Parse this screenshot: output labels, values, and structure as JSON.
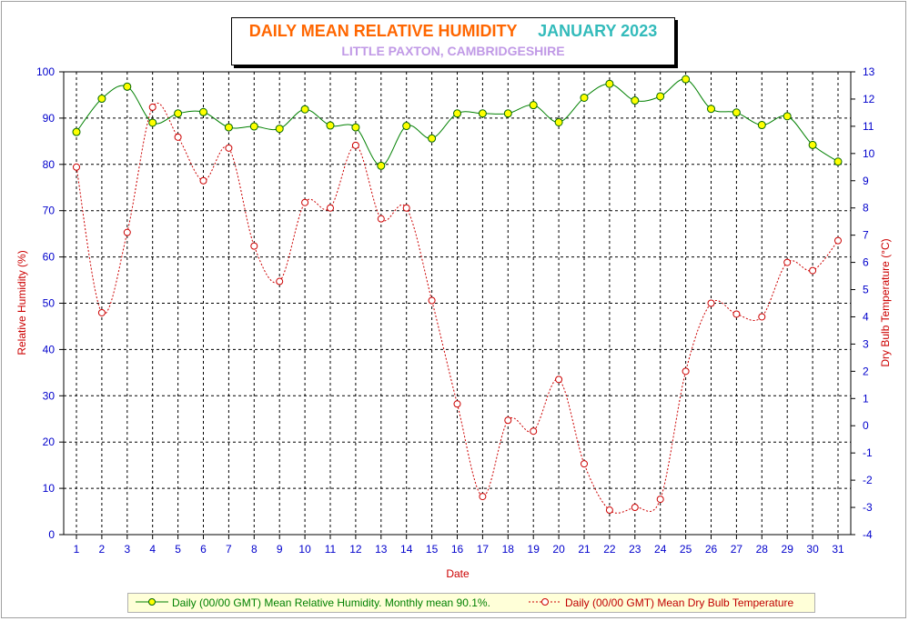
{
  "title": {
    "main": "DAILY MEAN RELATIVE HUMIDITY",
    "month": "JANUARY 2023",
    "subtitle": "LITTLE PAXTON, CAMBRIDGESHIRE"
  },
  "colors": {
    "humidity_line": "#008000",
    "humidity_marker": "#ffff00",
    "temp_line": "#cc0000",
    "axis_text": "#0000cc",
    "left_label": "#cc0000",
    "right_label": "#cc0000"
  },
  "chart_data": {
    "type": "line",
    "xlabel": "Date",
    "ylabel_left": "Relative Humidity (%)",
    "ylabel_right": "Dry Bulb Temperature (°C)",
    "x": [
      1,
      2,
      3,
      4,
      5,
      6,
      7,
      8,
      9,
      10,
      11,
      12,
      13,
      14,
      15,
      16,
      17,
      18,
      19,
      20,
      21,
      22,
      23,
      24,
      25,
      26,
      27,
      28,
      29,
      30,
      31
    ],
    "x_ticks": [
      "1",
      "2",
      "3",
      "4",
      "5",
      "6",
      "7",
      "8",
      "9",
      "10",
      "11",
      "12",
      "13",
      "14",
      "15",
      "16",
      "17",
      "18",
      "19",
      "20",
      "21",
      "22",
      "23",
      "24",
      "25",
      "26",
      "27",
      "28",
      "29",
      "30",
      "31"
    ],
    "ylim_left": [
      0,
      100
    ],
    "y_ticks_left": [
      "0",
      "10",
      "20",
      "30",
      "40",
      "50",
      "60",
      "70",
      "80",
      "90",
      "100"
    ],
    "ylim_right": [
      -4,
      13
    ],
    "y_ticks_right": [
      "-4",
      "-3",
      "-2",
      "-1",
      "0",
      "1",
      "2",
      "3",
      "4",
      "5",
      "6",
      "7",
      "8",
      "9",
      "10",
      "11",
      "12",
      "13"
    ],
    "grid": true,
    "legend_position": "bottom",
    "series": [
      {
        "name": "Daily (00/00 GMT) Mean Relative Humidity. Monthly mean 90.1%.",
        "axis": "left",
        "values": [
          87.0,
          94.2,
          96.8,
          89.0,
          91.0,
          91.3,
          88.0,
          88.2,
          87.7,
          91.9,
          88.4,
          88.0,
          79.7,
          88.3,
          85.6,
          91.0,
          91.0,
          91.0,
          92.8,
          89.1,
          94.4,
          97.4,
          93.8,
          94.7,
          98.4,
          92.0,
          91.2,
          88.5,
          90.4,
          84.2,
          80.6
        ]
      },
      {
        "name": "Daily (00/00 GMT) Mean Dry Bulb Temperature",
        "axis": "right",
        "values": [
          9.5,
          4.15,
          7.1,
          11.7,
          10.6,
          9.0,
          10.2,
          6.6,
          5.3,
          8.2,
          8.0,
          10.3,
          7.6,
          8.0,
          4.6,
          0.8,
          -2.6,
          0.2,
          -0.2,
          1.7,
          -1.4,
          -3.1,
          -3.0,
          -2.7,
          2.0,
          4.5,
          4.1,
          4.0,
          6.0,
          5.7,
          6.8
        ]
      }
    ]
  }
}
